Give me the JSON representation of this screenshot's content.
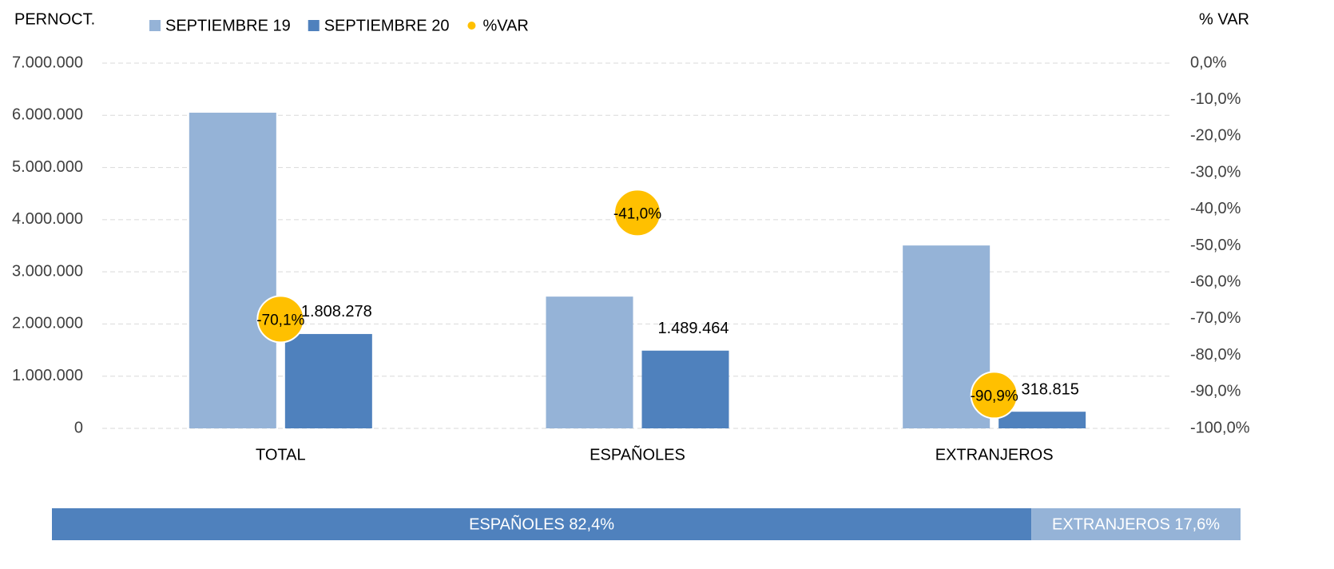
{
  "chart_data": {
    "type": "bar",
    "ylabel": "PERNOCT.",
    "y2label": "% VAR",
    "categories": [
      "TOTAL",
      "ESPAÑOLES",
      "EXTRANJEROS"
    ],
    "series": [
      {
        "name": "SEPTIEMBRE 19",
        "color": "#95b3d7",
        "values": [
          6050000,
          2525000,
          3505000
        ]
      },
      {
        "name": "SEPTIEMBRE 20",
        "color": "#4f81bd",
        "values": [
          1808278,
          1489464,
          318815
        ],
        "value_labels": [
          "1.808.278",
          "1.489.464",
          "318.815"
        ]
      },
      {
        "name": "%VAR",
        "color": "#ffc000",
        "type": "scatter",
        "axis": "y2",
        "values": [
          -70.1,
          -41.0,
          -90.9
        ],
        "value_labels": [
          "-70,1%",
          "-41,0%",
          "-90,9%"
        ]
      }
    ],
    "ylim": [
      0,
      7000000
    ],
    "yticks": [
      0,
      {
        "value": 1000000,
        "label": "1.000.000"
      },
      {
        "value": 2000000,
        "label": "2.000.000"
      },
      {
        "value": 3000000,
        "label": "3.000.000"
      },
      {
        "value": 4000000,
        "label": "4.000.000"
      },
      {
        "value": 5000000,
        "label": "5.000.000"
      },
      {
        "value": 6000000,
        "label": "6.000.000"
      },
      {
        "value": 7000000,
        "label": "7.000.000"
      }
    ],
    "y2lim": [
      -100,
      0
    ],
    "y2ticks": [
      {
        "value": 0,
        "label": "0,0%"
      },
      {
        "value": -10,
        "label": "-10,0%"
      },
      {
        "value": -20,
        "label": "-20,0%"
      },
      {
        "value": -30,
        "label": "-30,0%"
      },
      {
        "value": -40,
        "label": "-40,0%"
      },
      {
        "value": -50,
        "label": "-50,0%"
      },
      {
        "value": -60,
        "label": "-60,0%"
      },
      {
        "value": -70,
        "label": "-70,0%"
      },
      {
        "value": -80,
        "label": "-80,0%"
      },
      {
        "value": -90,
        "label": "-90,0%"
      },
      {
        "value": -100,
        "label": "-100,0%"
      }
    ],
    "grid": true,
    "legend": "top",
    "share_bar": [
      {
        "label": "ESPAÑOLES 82,4%",
        "value": 82.4,
        "color": "#4f81bd"
      },
      {
        "label": "EXTRANJEROS 17,6%",
        "value": 17.6,
        "color": "#95b3d7"
      }
    ]
  }
}
